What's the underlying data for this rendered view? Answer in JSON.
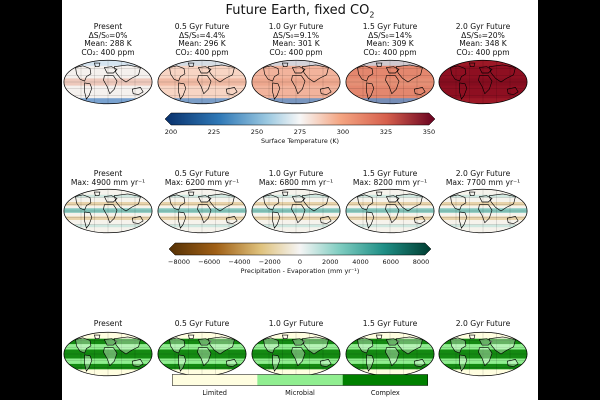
{
  "figure": {
    "title_main": "Future Earth, fixed CO",
    "title_sub": "2"
  },
  "temperature_row": {
    "panels": [
      {
        "name": "Present",
        "ds": "ΔS/S₀=0%",
        "mean": "Mean: 288 K",
        "co2": "CO₂: 400 ppm",
        "fill": "#f5f1ee"
      },
      {
        "name": "0.5 Gyr Future",
        "ds": "ΔS/S₀=4.4%",
        "mean": "Mean: 296 K",
        "co2": "CO₂: 400 ppm",
        "fill": "#f8d5c4"
      },
      {
        "name": "1.0 Gyr Future",
        "ds": "ΔS/S₀=9.1%",
        "mean": "Mean: 301 K",
        "co2": "CO₂: 400 ppm",
        "fill": "#f2b39c"
      },
      {
        "name": "1.5 Gyr Future",
        "ds": "ΔS/S₀=14%",
        "mean": "Mean: 309 K",
        "co2": "CO₂: 400 ppm",
        "fill": "#e4876e"
      },
      {
        "name": "2.0 Gyr Future",
        "ds": "ΔS/S₀=20%",
        "mean": "Mean: 348 K",
        "co2": "CO₂: 400 ppm",
        "fill": "#8e0f21"
      }
    ],
    "colorbar": {
      "label": "Surface Temperature (K)",
      "ticks": [
        "200",
        "225",
        "250",
        "275",
        "300",
        "325",
        "350"
      ],
      "colormap": "RdBu_r"
    }
  },
  "pe_row": {
    "panels": [
      {
        "name": "Present",
        "max": "Max: 4900 mm yr⁻¹"
      },
      {
        "name": "0.5 Gyr Future",
        "max": "Max: 6200 mm yr⁻¹"
      },
      {
        "name": "1.0 Gyr Future",
        "max": "Max: 6800 mm yr⁻¹"
      },
      {
        "name": "1.5 Gyr Future",
        "max": "Max: 8200 mm yr⁻¹"
      },
      {
        "name": "2.0 Gyr Future",
        "max": "Max: 7700 mm yr⁻¹"
      }
    ],
    "colorbar": {
      "label": "Precipitation - Evaporation (mm yr⁻¹)",
      "ticks": [
        "−8000",
        "−6000",
        "−4000",
        "−2000",
        "0",
        "2000",
        "4000",
        "6000",
        "8000"
      ],
      "colormap": "BrBG"
    }
  },
  "habitability_row": {
    "panels": [
      {
        "name": "Present"
      },
      {
        "name": "0.5 Gyr Future"
      },
      {
        "name": "1.0 Gyr Future"
      },
      {
        "name": "1.5 Gyr Future"
      },
      {
        "name": "2.0 Gyr Future"
      }
    ],
    "legend": [
      {
        "label": "Limited",
        "color": "#fffee0"
      },
      {
        "label": "Microbial",
        "color": "#90ee90"
      },
      {
        "label": "Complex",
        "color": "#008000"
      }
    ]
  }
}
